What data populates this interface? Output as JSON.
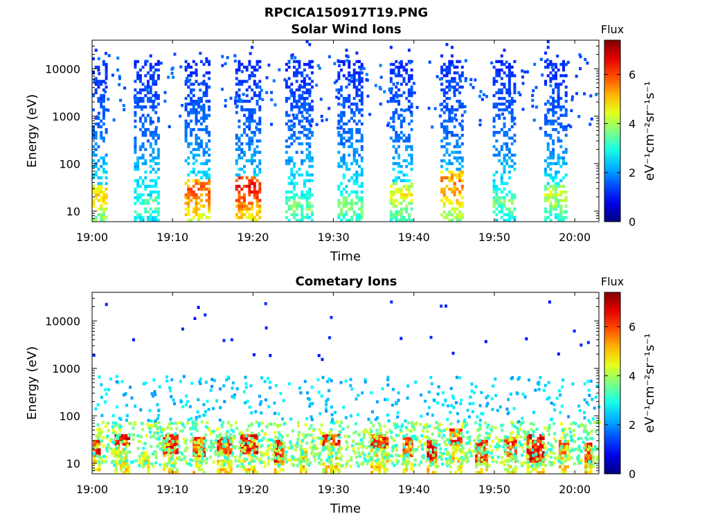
{
  "figure": {
    "title": "RPCICA150917T19.PNG"
  },
  "chart_data": [
    {
      "type": "heatmap",
      "title": "Solar Wind Ions",
      "xlabel": "Time",
      "ylabel": "Energy (eV)",
      "x_ticks": [
        "19:00",
        "19:10",
        "19:20",
        "19:30",
        "19:40",
        "19:50",
        "20:00"
      ],
      "x_range_minutes": [
        0,
        63
      ],
      "y_ticks": [
        "10",
        "100",
        "1000",
        "10000"
      ],
      "y_tick_values": [
        10,
        100,
        1000,
        10000
      ],
      "y_scale": "log",
      "ylim": [
        6,
        40000
      ],
      "colorbar": {
        "label": "Flux",
        "unit": "eV⁻¹cm⁻²sr⁻¹s⁻¹",
        "ticks": [
          "0",
          "2",
          "4",
          "6"
        ],
        "range": [
          0,
          7.4
        ],
        "colormap": "jet"
      },
      "sweep_bursts": [
        {
          "start_min": 0.0,
          "end_min": 1.8,
          "peak_flux": 5.0,
          "peak_energy_ev": 20
        },
        {
          "start_min": 5.2,
          "end_min": 8.3,
          "peak_flux": 3.4,
          "peak_energy_ev": 12
        },
        {
          "start_min": 11.5,
          "end_min": 14.4,
          "peak_flux": 5.8,
          "peak_energy_ev": 25
        },
        {
          "start_min": 17.8,
          "end_min": 20.7,
          "peak_flux": 6.4,
          "peak_energy_ev": 30
        },
        {
          "start_min": 24.0,
          "end_min": 27.3,
          "peak_flux": 3.6,
          "peak_energy_ev": 12
        },
        {
          "start_min": 30.5,
          "end_min": 33.4,
          "peak_flux": 3.8,
          "peak_energy_ev": 12
        },
        {
          "start_min": 37.0,
          "end_min": 39.8,
          "peak_flux": 4.6,
          "peak_energy_ev": 22
        },
        {
          "start_min": 43.3,
          "end_min": 46.0,
          "peak_flux": 5.6,
          "peak_energy_ev": 35
        },
        {
          "start_min": 49.8,
          "end_min": 52.5,
          "peak_flux": 3.6,
          "peak_energy_ev": 14
        },
        {
          "start_min": 56.2,
          "end_min": 59.0,
          "peak_flux": 4.2,
          "peak_energy_ev": 20
        }
      ]
    },
    {
      "type": "heatmap",
      "title": "Cometary Ions",
      "xlabel": "Time",
      "ylabel": "Energy (eV)",
      "x_ticks": [
        "19:00",
        "19:10",
        "19:20",
        "19:30",
        "19:40",
        "19:50",
        "20:00"
      ],
      "x_range_minutes": [
        0,
        63
      ],
      "y_ticks": [
        "10",
        "100",
        "1000",
        "10000"
      ],
      "y_tick_values": [
        10,
        100,
        1000,
        10000
      ],
      "y_scale": "log",
      "ylim": [
        6,
        40000
      ],
      "colorbar": {
        "label": "Flux",
        "unit": "eV⁻¹cm⁻²sr⁻¹s⁻¹",
        "ticks": [
          "0",
          "2",
          "4",
          "6"
        ],
        "range": [
          0,
          7.4
        ],
        "colormap": "jet"
      },
      "hot_patches": [
        {
          "start_min": 0.1,
          "end_min": 1.0,
          "e_low_ev": 12,
          "e_high_ev": 28,
          "peak_flux": 6.8
        },
        {
          "start_min": 2.8,
          "end_min": 4.6,
          "e_low_ev": 22,
          "e_high_ev": 40,
          "peak_flux": 7.2
        },
        {
          "start_min": 6.2,
          "end_min": 7.0,
          "e_low_ev": 10,
          "e_high_ev": 18,
          "peak_flux": 5.6
        },
        {
          "start_min": 8.8,
          "end_min": 10.6,
          "e_low_ev": 14,
          "e_high_ev": 40,
          "peak_flux": 7.0
        },
        {
          "start_min": 12.5,
          "end_min": 13.8,
          "e_low_ev": 12,
          "e_high_ev": 34,
          "peak_flux": 6.8
        },
        {
          "start_min": 15.5,
          "end_min": 17.2,
          "e_low_ev": 14,
          "e_high_ev": 34,
          "peak_flux": 7.0
        },
        {
          "start_min": 18.4,
          "end_min": 20.6,
          "e_low_ev": 14,
          "e_high_ev": 40,
          "peak_flux": 7.2
        },
        {
          "start_min": 22.6,
          "end_min": 23.6,
          "e_low_ev": 10,
          "e_high_ev": 30,
          "peak_flux": 7.0
        },
        {
          "start_min": 25.8,
          "end_min": 26.6,
          "e_low_ev": 8,
          "e_high_ev": 20,
          "peak_flux": 5.4
        },
        {
          "start_min": 28.6,
          "end_min": 30.6,
          "e_low_ev": 22,
          "e_high_ev": 40,
          "peak_flux": 7.0
        },
        {
          "start_min": 34.6,
          "end_min": 36.6,
          "e_low_ev": 20,
          "e_high_ev": 40,
          "peak_flux": 7.0
        },
        {
          "start_min": 38.6,
          "end_min": 39.6,
          "e_low_ev": 12,
          "e_high_ev": 32,
          "peak_flux": 6.6
        },
        {
          "start_min": 41.6,
          "end_min": 42.8,
          "e_low_ev": 10,
          "e_high_ev": 30,
          "peak_flux": 7.0
        },
        {
          "start_min": 44.4,
          "end_min": 46.0,
          "e_low_ev": 22,
          "e_high_ev": 50,
          "peak_flux": 6.6
        },
        {
          "start_min": 47.6,
          "end_min": 49.0,
          "e_low_ev": 10,
          "e_high_ev": 30,
          "peak_flux": 7.0
        },
        {
          "start_min": 51.2,
          "end_min": 52.6,
          "e_low_ev": 12,
          "e_high_ev": 34,
          "peak_flux": 6.6
        },
        {
          "start_min": 54.0,
          "end_min": 56.0,
          "e_low_ev": 10,
          "e_high_ev": 36,
          "peak_flux": 7.2
        },
        {
          "start_min": 58.0,
          "end_min": 59.0,
          "e_low_ev": 12,
          "e_high_ev": 30,
          "peak_flux": 6.4
        },
        {
          "start_min": 61.2,
          "end_min": 62.0,
          "e_low_ev": 10,
          "e_high_ev": 24,
          "peak_flux": 6.8
        }
      ]
    }
  ]
}
